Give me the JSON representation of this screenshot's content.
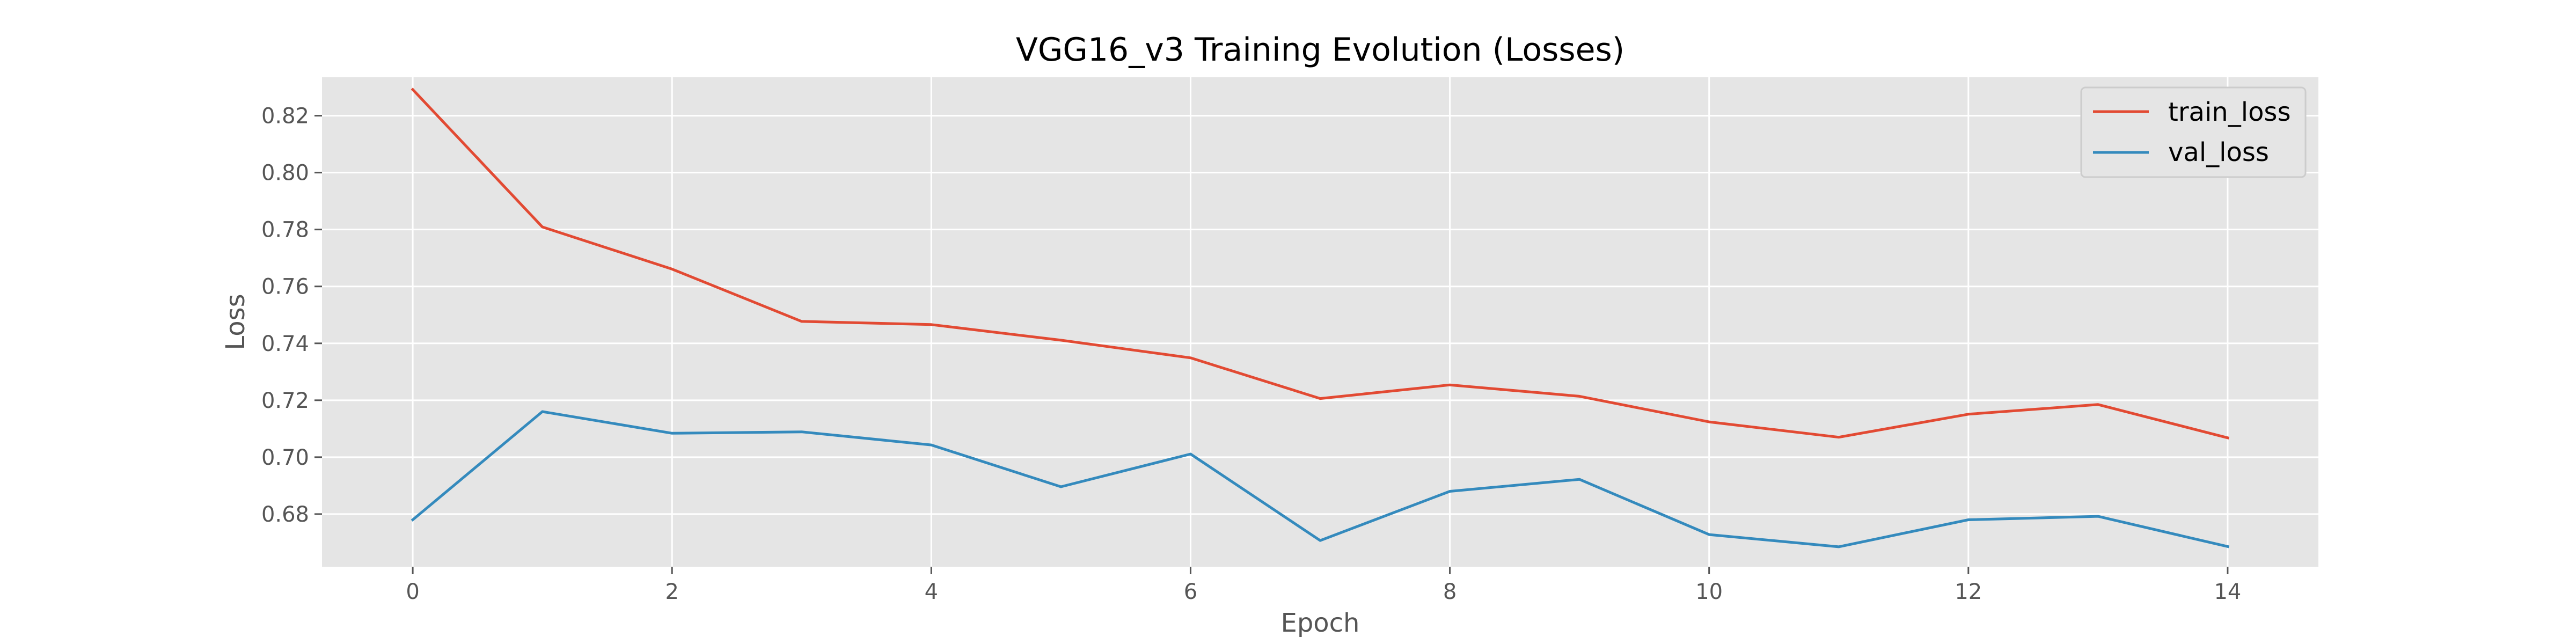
{
  "chart_data": {
    "type": "line",
    "title": "VGG16_v3 Training Evolution (Losses)",
    "xlabel": "Epoch",
    "ylabel": "Loss",
    "x": [
      0,
      1,
      2,
      3,
      4,
      5,
      6,
      7,
      8,
      9,
      10,
      11,
      12,
      13,
      14
    ],
    "xlim": [
      -0.7,
      14.7
    ],
    "ylim": [
      0.6615,
      0.8335
    ],
    "xticks": [
      0,
      2,
      4,
      6,
      8,
      10,
      12,
      14
    ],
    "xtick_labels": [
      "0",
      "2",
      "4",
      "6",
      "8",
      "10",
      "12",
      "14"
    ],
    "yticks": [
      0.68,
      0.7,
      0.72,
      0.74,
      0.76,
      0.78,
      0.8,
      0.82
    ],
    "ytick_labels": [
      "0.68",
      "0.70",
      "0.72",
      "0.74",
      "0.76",
      "0.78",
      "0.80",
      "0.82"
    ],
    "grid": true,
    "legend_position": "top-right",
    "series": [
      {
        "name": "train_loss",
        "color": "#E24A33",
        "values": [
          0.8292,
          0.7809,
          0.7661,
          0.7477,
          0.7466,
          0.7411,
          0.7349,
          0.7206,
          0.7254,
          0.7214,
          0.7124,
          0.707,
          0.7151,
          0.7185,
          0.7068
        ]
      },
      {
        "name": "val_loss",
        "color": "#348ABD",
        "values": [
          0.678,
          0.716,
          0.7084,
          0.7089,
          0.7043,
          0.6896,
          0.7011,
          0.6707,
          0.688,
          0.6922,
          0.6728,
          0.6685,
          0.678,
          0.6792,
          0.6686
        ]
      }
    ],
    "colors": {
      "plot_background": "#E5E5E5",
      "grid": "#FFFFFF",
      "tick": "#555555",
      "legend_background": "#E5E5E5",
      "legend_border": "#CCCCCC"
    }
  }
}
